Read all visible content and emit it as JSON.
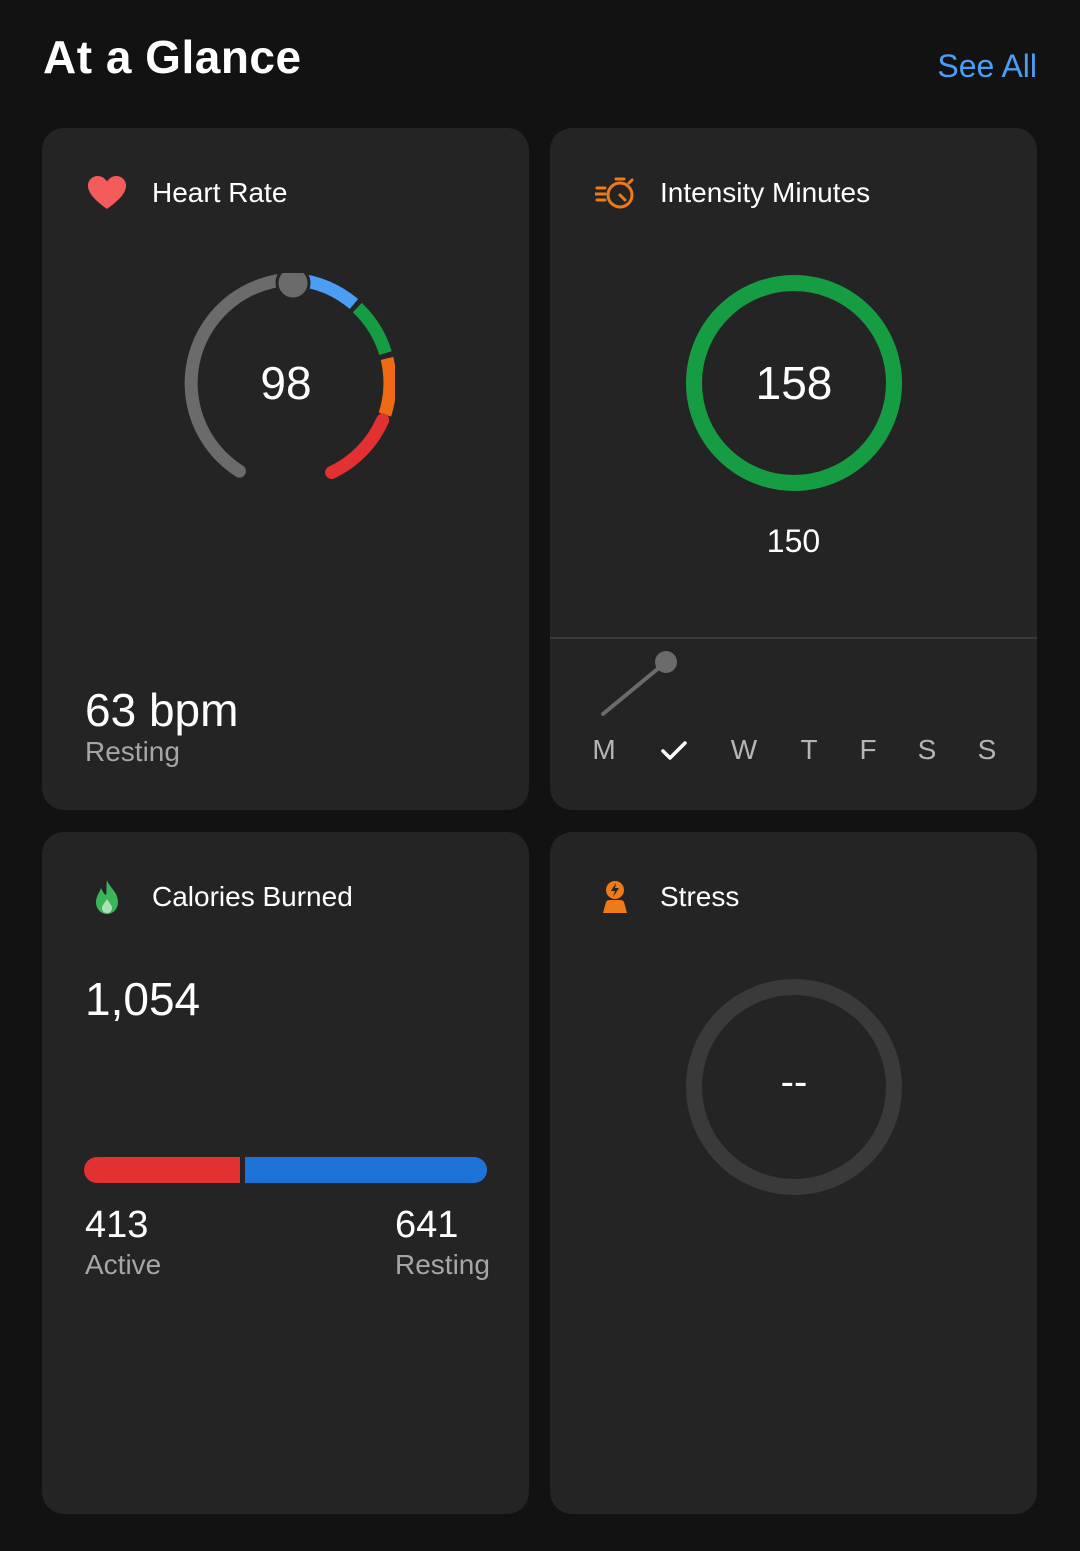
{
  "header": {
    "title": "At a Glance",
    "see_all": "See All"
  },
  "heart_rate": {
    "title": "Heart Rate",
    "current": "98",
    "resting_value": "63 bpm",
    "resting_label": "Resting",
    "icon": "heart-icon",
    "colors": {
      "zone1": "#4a9ff5",
      "zone2": "#169c42",
      "zone3": "#ee6a14",
      "zone4": "#e33030",
      "track": "#6b6b6b"
    }
  },
  "intensity": {
    "title": "Intensity Minutes",
    "value": "158",
    "goal": "150",
    "icon": "stopwatch-icon",
    "ring_color": "#169c42",
    "days": [
      "M",
      "",
      "W",
      "T",
      "F",
      "S",
      "S"
    ],
    "completed_day": "T"
  },
  "calories": {
    "title": "Calories Burned",
    "total": "1,054",
    "active_value": "413",
    "active_label": "Active",
    "resting_value": "641",
    "resting_label": "Resting",
    "icon": "flame-icon",
    "colors": {
      "active": "#e33030",
      "resting": "#1d72d8"
    }
  },
  "stress": {
    "title": "Stress",
    "value": "--",
    "icon": "stress-person-icon"
  }
}
